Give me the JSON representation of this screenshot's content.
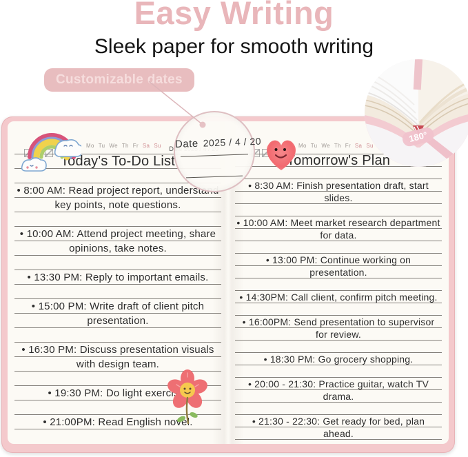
{
  "page": {
    "title": "Easy Writing",
    "subtitle": "Sleek paper for smooth writing",
    "feature_badge": "Customizable dates"
  },
  "magnifier": {
    "date_label": "Date",
    "date_value": "2025 / 4 / 20"
  },
  "inset": {
    "angle_label": "180°"
  },
  "weekdays": [
    "Mo",
    "Tu",
    "We",
    "Th",
    "Fr",
    "Sa",
    "Su"
  ],
  "notebook": {
    "left_page": {
      "title": "Today's To-Do List",
      "date_label": "Date",
      "date_value": "2025 / 4 / 20",
      "items": [
        "8:00 AM: Read project report, understand key points, note questions.",
        "10:00 AM: Attend project meeting, share opinions, take notes.",
        "13:30 PM: Reply to important emails.",
        "15:00 PM: Write draft of client pitch presentation.",
        "16:30 PM: Discuss presentation visuals with design team.",
        "19:30 PM: Do light exercise.",
        "21:00PM: Read English novel."
      ]
    },
    "right_page": {
      "title": "Tomorrow's Plan",
      "items": [
        "8:30 AM: Finish presentation draft, start slides.",
        "10:00 AM: Meet market research department for data.",
        "13:00 PM: Continue working on presentation.",
        "14:30PM: Call client, confirm pitch meeting.",
        "16:00PM: Send presentation to supervisor for review.",
        "18:30 PM: Go grocery shopping.",
        "20:00 - 21:30: Practice guitar, watch TV drama.",
        "21:30 - 22:30: Get ready for bed, plan ahead."
      ]
    }
  },
  "stickers": {
    "left_header": "rainbow-with-clouds",
    "right_header": "smiling-heart",
    "left_bottom": "smiling-flower"
  },
  "colors": {
    "accent_pink": "#e9b6ba",
    "badge_bg": "#e8bdbf",
    "badge_text": "#f6dddd",
    "cover_pink": "#f4c9cc",
    "page_bg": "#fcfaf5",
    "rule_line": "#7a7672",
    "heart_red": "#f2696f",
    "flower_red": "#ee6f73",
    "flower_center": "#f6c94e"
  }
}
